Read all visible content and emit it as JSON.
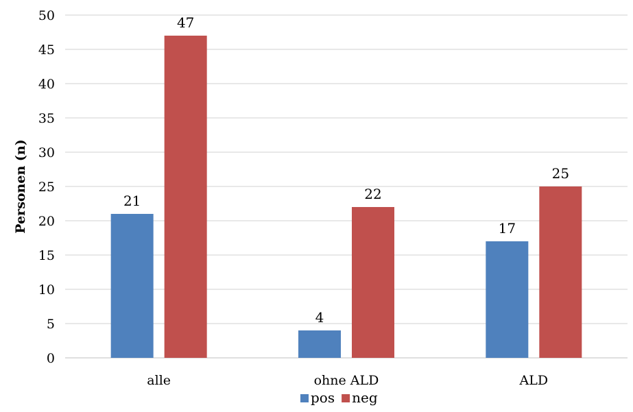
{
  "chart_data": {
    "type": "bar",
    "title": "",
    "xlabel": "",
    "ylabel": "Personen (n)",
    "ylim": [
      0,
      50
    ],
    "yticks": [
      0,
      5,
      10,
      15,
      20,
      25,
      30,
      35,
      40,
      45,
      50
    ],
    "grid": true,
    "legend_position": "bottom",
    "categories": [
      "alle",
      "ohne ALD",
      "ALD"
    ],
    "series": [
      {
        "name": "pos",
        "color": "#4f81bd",
        "values": [
          21,
          4,
          17
        ]
      },
      {
        "name": "neg",
        "color": "#c0504d",
        "values": [
          47,
          22,
          25
        ]
      }
    ]
  }
}
